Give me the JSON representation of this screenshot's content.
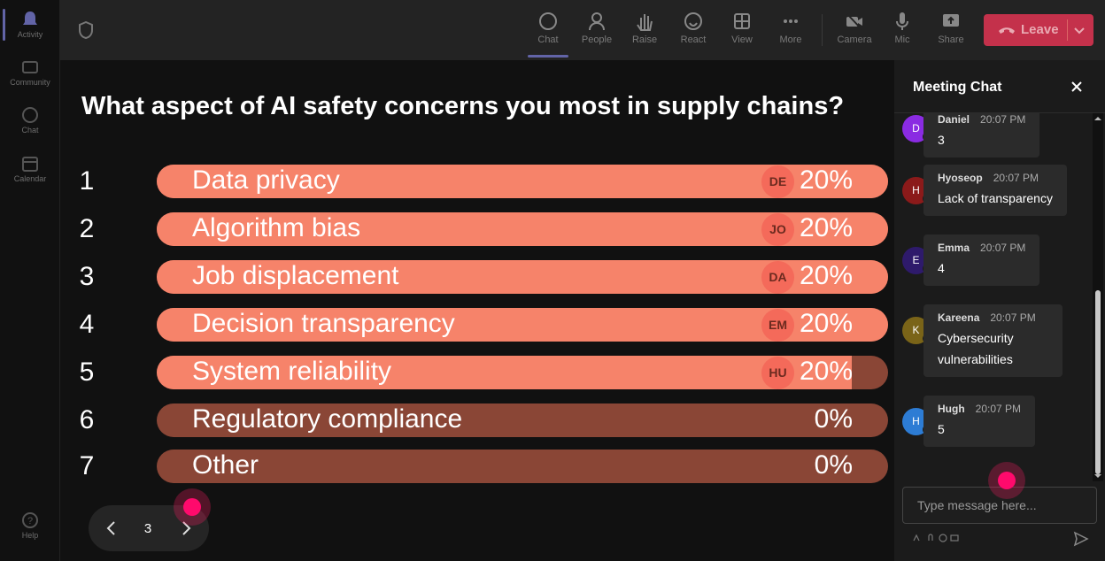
{
  "rail": {
    "items": [
      {
        "label": "Activity",
        "icon": "bell-icon"
      },
      {
        "label": "Community",
        "icon": "community-icon"
      },
      {
        "label": "Chat",
        "icon": "chat-icon"
      },
      {
        "label": "Calendar",
        "icon": "calendar-icon"
      },
      {
        "label": "Help",
        "icon": "help-icon"
      }
    ]
  },
  "toolbar": {
    "items": [
      {
        "label": "Chat",
        "icon": "chat-icon"
      },
      {
        "label": "People",
        "icon": "people-icon"
      },
      {
        "label": "Raise",
        "icon": "raise-hand-icon"
      },
      {
        "label": "React",
        "icon": "react-icon"
      },
      {
        "label": "View",
        "icon": "view-icon"
      },
      {
        "label": "More",
        "icon": "more-icon"
      },
      {
        "label": "Camera",
        "icon": "camera-off-icon"
      },
      {
        "label": "Mic",
        "icon": "mic-icon"
      },
      {
        "label": "Share",
        "icon": "share-icon"
      }
    ],
    "leave_label": "Leave"
  },
  "poll": {
    "question": "What aspect of AI safety concerns you most in supply chains?",
    "options": [
      {
        "num": "1",
        "label": "Data privacy",
        "percent_text": "20%",
        "fill": 1.0,
        "avatar": "DE"
      },
      {
        "num": "2",
        "label": "Algorithm bias",
        "percent_text": "20%",
        "fill": 1.0,
        "avatar": "JO"
      },
      {
        "num": "3",
        "label": "Job displacement",
        "percent_text": "20%",
        "fill": 1.0,
        "avatar": "DA"
      },
      {
        "num": "4",
        "label": "Decision transparency",
        "percent_text": "20%",
        "fill": 1.0,
        "avatar": "EM"
      },
      {
        "num": "5",
        "label": "System reliability",
        "percent_text": "20%",
        "fill": 0.95,
        "avatar": "HU"
      },
      {
        "num": "6",
        "label": "Regulatory compliance",
        "percent_text": "0%",
        "fill": 0,
        "avatar": ""
      },
      {
        "num": "7",
        "label": "Other",
        "percent_text": "0%",
        "fill": 0,
        "avatar": ""
      }
    ],
    "colors": {
      "filled": "#f6836a",
      "track": "#8a4636",
      "avatar_bg": "#f46a5a"
    }
  },
  "pager": {
    "page": "3"
  },
  "chat": {
    "title": "Meeting Chat",
    "messages": [
      {
        "initial": "D",
        "name": "Daniel",
        "time": "20:07 PM",
        "text": "3",
        "color": "#8a2be2"
      },
      {
        "initial": "H",
        "name": "Hyoseop",
        "time": "20:07 PM",
        "text": "Lack of transparency",
        "color": "#8b1a1a"
      },
      {
        "initial": "E",
        "name": "Emma",
        "time": "20:07 PM",
        "text": "4",
        "color": "#2e1a6b"
      },
      {
        "initial": "K",
        "name": "Kareena",
        "time": "20:07 PM",
        "text": "Cybersecurity vulnerabilities",
        "color": "#7a6418"
      },
      {
        "initial": "H",
        "name": "Hugh",
        "time": "20:07 PM",
        "text": "5",
        "color": "#2d7cd4"
      }
    ],
    "input_placeholder": "Type message here..."
  }
}
